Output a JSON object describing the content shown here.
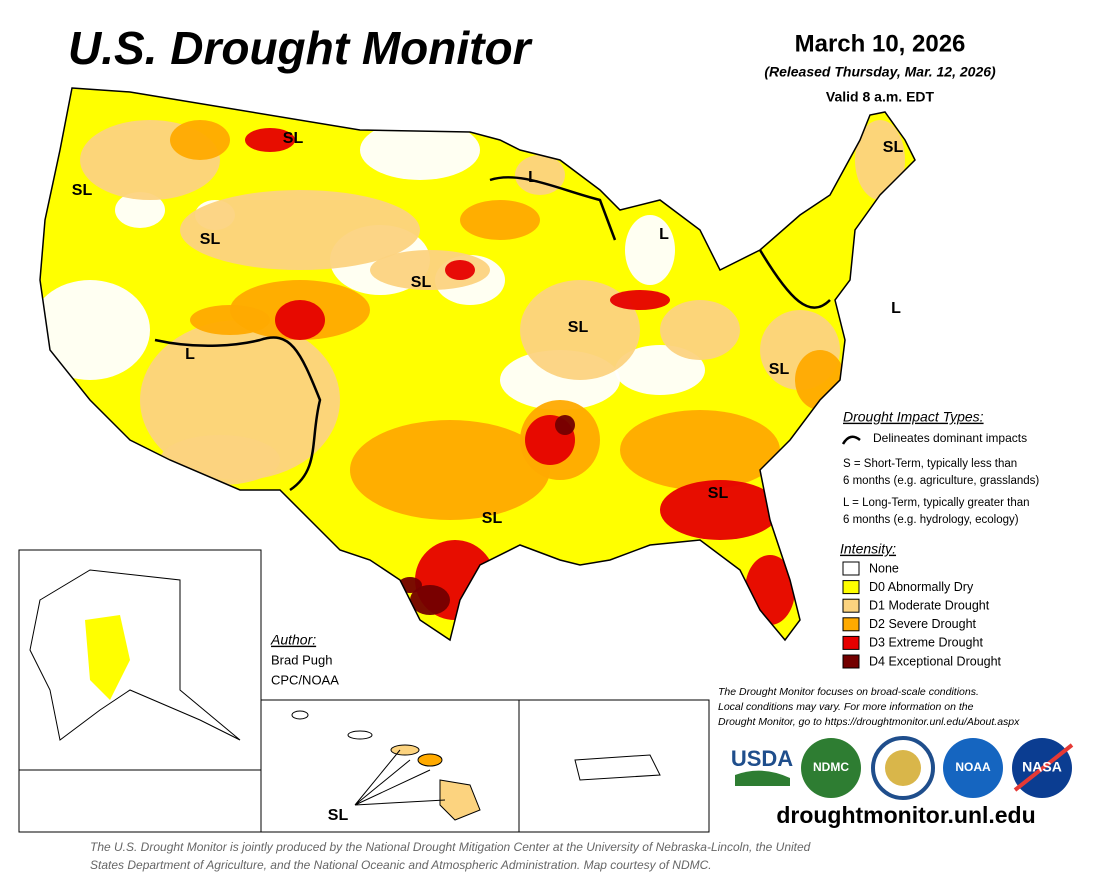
{
  "header": {
    "title": "U.S. Drought Monitor",
    "date": "March 10, 2026",
    "released": "(Released Thursday, Mar. 12, 2026)",
    "valid": "Valid 8 a.m. EDT"
  },
  "map_labels": [
    "SL",
    "SL",
    "SL",
    "SL",
    "SL",
    "SL",
    "SL",
    "SL",
    "SL",
    "L",
    "L",
    "L",
    "L",
    "SL"
  ],
  "impact": {
    "title": "Drought Impact Types:",
    "delineates": "Delineates dominant impacts",
    "short": [
      "S = Short-Term, typically less than",
      "6 months (e.g. agriculture, grasslands)"
    ],
    "long": [
      "L = Long-Term, typically greater than",
      "6 months (e.g. hydrology, ecology)"
    ]
  },
  "intensity": {
    "title": "Intensity:",
    "items": [
      {
        "name": "None",
        "color": "#ffffff"
      },
      {
        "name": "D0 Abnormally Dry",
        "color": "#ffff00"
      },
      {
        "name": "D1 Moderate Drought",
        "color": "#fcd37f"
      },
      {
        "name": "D2 Severe Drought",
        "color": "#ffaa00"
      },
      {
        "name": "D3 Extreme Drought",
        "color": "#e60000"
      },
      {
        "name": "D4 Exceptional Drought",
        "color": "#730000"
      }
    ]
  },
  "author": {
    "title": "Author:",
    "name": "Brad Pugh",
    "org": "CPC/NOAA"
  },
  "note": [
    "The Drought Monitor focuses on broad-scale conditions.",
    "Local conditions may vary. For more information on the",
    "Drought Monitor, go to https://droughtmonitor.unl.edu/About.aspx"
  ],
  "logos": [
    "USDA",
    "NDMC",
    "NOAA",
    "NASA"
  ],
  "url": "droughtmonitor.unl.edu",
  "footer": [
    "The U.S. Drought Monitor is jointly produced by the National Drought Mitigation Center at the University of Nebraska-Lincoln, the United",
    "States Department of Agriculture, and the National Oceanic and Atmospheric Administration. Map courtesy of NDMC."
  ]
}
